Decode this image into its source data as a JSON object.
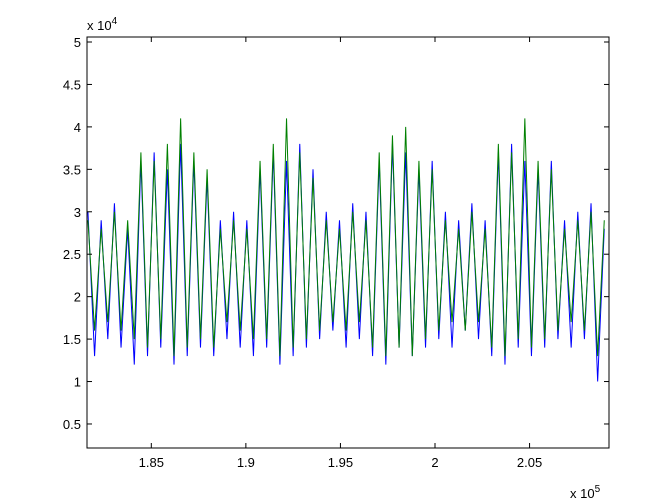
{
  "chart_data": {
    "type": "line",
    "y_exponent": {
      "base": "x 10",
      "power": "4"
    },
    "x_exponent": {
      "base": "x 10",
      "power": "5"
    },
    "x": [
      1.8165,
      1.82,
      1.8235,
      1.827,
      1.8305,
      1.834,
      1.8375,
      1.841,
      1.8445,
      1.848,
      1.8515,
      1.855,
      1.8585,
      1.862,
      1.8655,
      1.869,
      1.8725,
      1.876,
      1.8795,
      1.883,
      1.8865,
      1.89,
      1.8935,
      1.897,
      1.9005,
      1.904,
      1.9075,
      1.911,
      1.9145,
      1.918,
      1.9215,
      1.925,
      1.9285,
      1.932,
      1.9355,
      1.939,
      1.9425,
      1.946,
      1.9495,
      1.953,
      1.9565,
      1.96,
      1.9635,
      1.967,
      1.9705,
      1.974,
      1.9775,
      1.981,
      1.9845,
      1.988,
      1.9915,
      1.995,
      1.9985,
      2.002,
      2.0055,
      2.009,
      2.0125,
      2.016,
      2.0195,
      2.023,
      2.0265,
      2.03,
      2.0335,
      2.037,
      2.0405,
      2.044,
      2.0475,
      2.051,
      2.0545,
      2.058,
      2.0615,
      2.065,
      2.0685,
      2.072,
      2.0755,
      2.079,
      2.0825,
      2.086,
      2.0895
    ],
    "series": [
      {
        "name": "blue",
        "color": "#0000ff",
        "values": [
          3.0,
          1.3,
          2.9,
          1.5,
          3.1,
          1.4,
          2.8,
          1.2,
          3.6,
          1.3,
          3.7,
          1.4,
          3.5,
          1.2,
          3.8,
          1.3,
          3.6,
          1.4,
          3.4,
          1.3,
          2.9,
          1.5,
          3.0,
          1.4,
          2.9,
          1.3,
          3.5,
          1.4,
          3.7,
          1.2,
          3.6,
          1.3,
          3.8,
          1.4,
          3.5,
          1.5,
          3.0,
          1.6,
          2.9,
          1.4,
          3.1,
          1.5,
          3.0,
          1.3,
          3.6,
          1.2,
          3.8,
          1.4,
          3.7,
          1.3,
          3.5,
          1.4,
          3.6,
          1.5,
          3.0,
          1.4,
          2.9,
          1.6,
          3.1,
          1.5,
          2.9,
          1.3,
          3.7,
          1.2,
          3.8,
          1.4,
          3.6,
          1.3,
          3.5,
          1.4,
          3.6,
          1.5,
          2.9,
          1.4,
          3.0,
          1.5,
          3.1,
          1.0,
          2.8
        ]
      },
      {
        "name": "green",
        "color": "#008000",
        "values": [
          2.9,
          1.6,
          2.8,
          1.7,
          3.0,
          1.6,
          2.9,
          1.5,
          3.7,
          1.4,
          3.6,
          1.5,
          3.8,
          1.3,
          4.1,
          1.4,
          3.7,
          1.5,
          3.5,
          1.4,
          2.8,
          1.7,
          2.9,
          1.6,
          2.8,
          1.5,
          3.6,
          1.5,
          3.8,
          1.3,
          4.1,
          1.4,
          3.7,
          1.5,
          3.4,
          1.6,
          2.9,
          1.7,
          2.8,
          1.6,
          3.0,
          1.7,
          2.9,
          1.4,
          3.7,
          1.3,
          3.9,
          1.4,
          4.0,
          1.3,
          3.6,
          1.5,
          3.5,
          1.6,
          2.9,
          1.7,
          2.8,
          1.6,
          3.0,
          1.7,
          2.8,
          1.4,
          3.8,
          1.3,
          3.7,
          1.5,
          4.1,
          1.4,
          3.6,
          1.5,
          3.5,
          1.6,
          2.8,
          1.7,
          2.9,
          1.6,
          3.0,
          1.3,
          2.9
        ]
      }
    ],
    "xlim": [
      1.816,
      2.092
    ],
    "ylim": [
      0.217,
      5.059
    ],
    "xticks": [
      1.85,
      1.9,
      1.95,
      2,
      2.05
    ],
    "yticks": [
      0.5,
      1,
      1.5,
      2,
      2.5,
      3,
      3.5,
      4,
      4.5,
      5
    ]
  }
}
